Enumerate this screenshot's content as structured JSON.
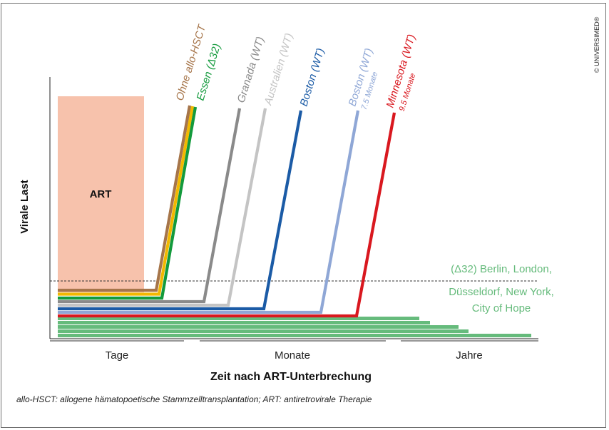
{
  "copyright": "© UNIVERSIMED®",
  "caption": "allo-HSCT: allogene hämatopoetische Stammzelltransplantation; ART: antiretrovirale Therapie",
  "chart_data": {
    "type": "line",
    "title": "",
    "xlabel": "Zeit nach ART-Unterbrechung",
    "ylabel": "Virale Last",
    "x_categories": [
      "Tage",
      "Monate",
      "Jahre"
    ],
    "therapy_block": {
      "label": "ART",
      "color": "#f7c2ac"
    },
    "series": [
      {
        "name": "Ohne allo-HSCT",
        "sublabel": "",
        "color": "#a6754a"
      },
      {
        "name": "Essen (Δ32)",
        "sublabel": "",
        "color": "#139a3c"
      },
      {
        "name": "Granada (WT)",
        "sublabel": "",
        "color": "#8a8a8a"
      },
      {
        "name": "Australien (WT)",
        "sublabel": "",
        "color": "#c4c4c4"
      },
      {
        "name": "Boston (WT)",
        "sublabel": "",
        "color": "#1b5ba6"
      },
      {
        "name": "Boston (WT)",
        "sublabel": "7.5 Monate",
        "color": "#8fa7d6"
      },
      {
        "name": "Minnesota (WT)",
        "sublabel": "9.5 Monate",
        "color": "#d9181f"
      }
    ],
    "hidden_series_color": "#f2b800",
    "remission_group": {
      "lines": [
        "(Δ32) Berlin, London,",
        "Düsseldorf, New York,",
        "City of Hope"
      ],
      "color": "#66bb7c"
    }
  }
}
